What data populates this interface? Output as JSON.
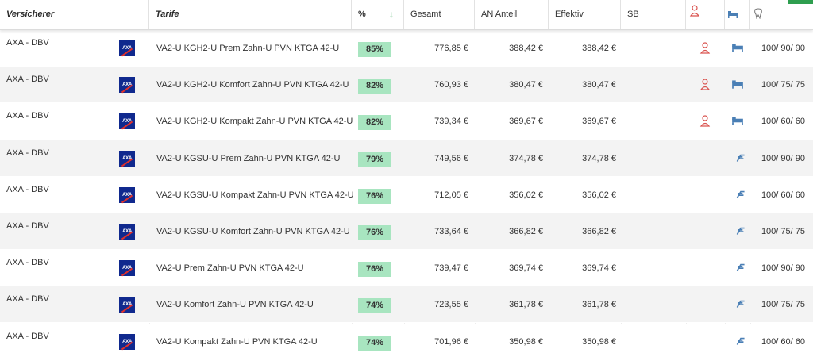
{
  "header": {
    "versicherer": "Versicherer",
    "tarife": "Tarife",
    "percent": "%",
    "sort_arrow": "↓",
    "gesamt": "Gesamt",
    "an_anteil": "AN Anteil",
    "effektiv": "Effektiv",
    "sb": "SB"
  },
  "colors": {
    "percent_badge": "#a8e5c0",
    "logo_blue": "#10298e",
    "logo_red": "#e0302b",
    "accent_green": "#2e9e4f",
    "row_alt": "#f3f3f3"
  },
  "rows": [
    {
      "insurer": "AXA - DBV",
      "logo": "AXA",
      "tarif": "VA2-U KGH2-U Prem Zahn-U PVN KTGA 42-U",
      "pct": "85%",
      "gesamt": "776,85 €",
      "an": "388,42 €",
      "eff": "388,42 €",
      "icons": [
        "person-icon",
        "hospital-bed-icon"
      ],
      "vals": "100/ 90/ 90"
    },
    {
      "insurer": "AXA - DBV",
      "logo": "AXA",
      "tarif": "VA2-U KGH2-U Komfort Zahn-U PVN KTGA 42-U",
      "pct": "82%",
      "gesamt": "760,93 €",
      "an": "380,47 €",
      "eff": "380,47 €",
      "icons": [
        "person-icon",
        "hospital-bed-icon"
      ],
      "vals": "100/ 75/ 75"
    },
    {
      "insurer": "AXA - DBV",
      "logo": "AXA",
      "tarif": "VA2-U KGH2-U Kompakt Zahn-U PVN KTGA 42-U",
      "pct": "82%",
      "gesamt": "739,34 €",
      "an": "369,67 €",
      "eff": "369,67 €",
      "icons": [
        "person-icon",
        "hospital-bed-icon"
      ],
      "vals": "100/ 60/ 60"
    },
    {
      "insurer": "AXA - DBV",
      "logo": "AXA",
      "tarif": "VA2-U KGSU-U Prem Zahn-U PVN KTGA 42-U",
      "pct": "79%",
      "gesamt": "749,56 €",
      "an": "374,78 €",
      "eff": "374,78 €",
      "icons": [
        "bed-icon"
      ],
      "vals": "100/ 90/ 90"
    },
    {
      "insurer": "AXA - DBV",
      "logo": "AXA",
      "tarif": "VA2-U KGSU-U Kompakt Zahn-U PVN KTGA 42-U",
      "pct": "76%",
      "gesamt": "712,05 €",
      "an": "356,02 €",
      "eff": "356,02 €",
      "icons": [
        "bed-icon"
      ],
      "vals": "100/ 60/ 60"
    },
    {
      "insurer": "AXA - DBV",
      "logo": "AXA",
      "tarif": "VA2-U KGSU-U Komfort Zahn-U PVN KTGA 42-U",
      "pct": "76%",
      "gesamt": "733,64 €",
      "an": "366,82 €",
      "eff": "366,82 €",
      "icons": [
        "bed-icon"
      ],
      "vals": "100/ 75/ 75"
    },
    {
      "insurer": "AXA - DBV",
      "logo": "AXA",
      "tarif": "VA2-U Prem Zahn-U PVN KTGA 42-U",
      "pct": "76%",
      "gesamt": "739,47 €",
      "an": "369,74 €",
      "eff": "369,74 €",
      "icons": [
        "bed-icon"
      ],
      "vals": "100/ 90/ 90"
    },
    {
      "insurer": "AXA - DBV",
      "logo": "AXA",
      "tarif": "VA2-U Komfort Zahn-U PVN KTGA 42-U",
      "pct": "74%",
      "gesamt": "723,55 €",
      "an": "361,78 €",
      "eff": "361,78 €",
      "icons": [
        "bed-icon"
      ],
      "vals": "100/ 75/ 75"
    },
    {
      "insurer": "AXA - DBV",
      "logo": "AXA",
      "tarif": "VA2-U Kompakt Zahn-U PVN KTGA 42-U",
      "pct": "74%",
      "gesamt": "701,96 €",
      "an": "350,98 €",
      "eff": "350,98 €",
      "icons": [
        "bed-icon"
      ],
      "vals": "100/ 60/ 60"
    }
  ]
}
